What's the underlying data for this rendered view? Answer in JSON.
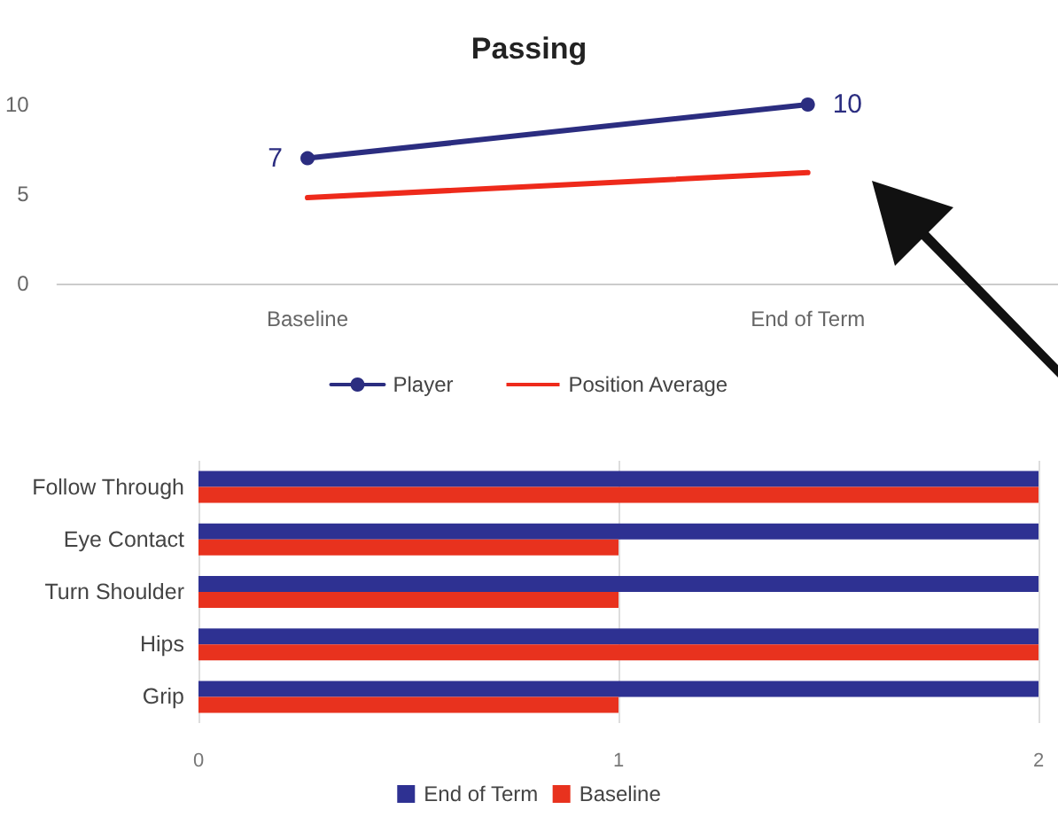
{
  "chart_data": [
    {
      "type": "line",
      "title": "Passing",
      "categories": [
        "Baseline",
        "End of Term"
      ],
      "series": [
        {
          "name": "Player",
          "color": "#2b2d80",
          "values": [
            7,
            10
          ],
          "marker": "circle",
          "value_labels": [
            "7",
            "10"
          ]
        },
        {
          "name": "Position Average",
          "color": "#ee2a1b",
          "values": [
            4.8,
            6.2
          ],
          "marker": "none"
        }
      ],
      "ylim": [
        0,
        10
      ],
      "yticks": [
        0,
        5,
        10
      ],
      "grid": false,
      "legend": "bottom"
    },
    {
      "type": "bar",
      "orientation": "horizontal",
      "categories": [
        "Follow Through",
        "Eye Contact",
        "Turn Shoulder",
        "Hips",
        "Grip"
      ],
      "series": [
        {
          "name": "End of Term",
          "color": "#2e3192",
          "values": [
            2,
            2,
            2,
            2,
            2
          ]
        },
        {
          "name": "Baseline",
          "color": "#e8321e",
          "values": [
            2,
            1,
            1,
            2,
            1
          ]
        }
      ],
      "xlim": [
        0,
        2
      ],
      "xticks": [
        0,
        1,
        2
      ],
      "grid": "x",
      "legend": "bottom"
    }
  ]
}
